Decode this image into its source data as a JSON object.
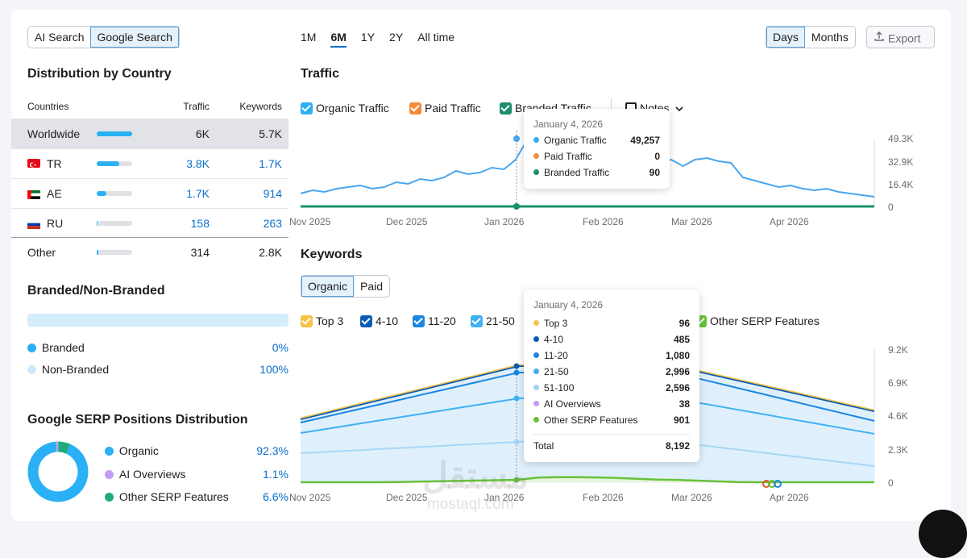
{
  "search_tabs": [
    "AI Search",
    "Google Search"
  ],
  "periods": [
    "1M",
    "6M",
    "1Y",
    "2Y",
    "All time"
  ],
  "granularity": [
    "Days",
    "Months"
  ],
  "export_label": "Export",
  "country": {
    "title": "Distribution by Country",
    "headers": [
      "Countries",
      "Traffic",
      "Keywords"
    ],
    "rows": [
      {
        "name": "Worldwide",
        "traffic": "6K",
        "keywords": "5.7K",
        "share": 100
      },
      {
        "name": "TR",
        "traffic": "3.8K",
        "keywords": "1.7K",
        "share": 63
      },
      {
        "name": "AE",
        "traffic": "1.7K",
        "keywords": "914",
        "share": 28
      },
      {
        "name": "RU",
        "traffic": "158",
        "keywords": "263",
        "share": 3
      },
      {
        "name": "Other",
        "traffic": "314",
        "keywords": "2.8K",
        "share": 5
      }
    ]
  },
  "branded": {
    "title": "Branded/Non-Branded",
    "items": [
      {
        "label": "Branded",
        "value": "0%",
        "color": "#2ab0f4"
      },
      {
        "label": "Non-Branded",
        "value": "100%",
        "color": "#cde9fb"
      }
    ]
  },
  "serp": {
    "title": "Google SERP Positions Distribution",
    "items": [
      {
        "label": "Organic",
        "value": "92.3%",
        "color": "#2ab0f4",
        "share": 92.3
      },
      {
        "label": "AI Overviews",
        "value": "1.1%",
        "color": "#c59cf4",
        "share": 1.1
      },
      {
        "label": "Other SERP Features",
        "value": "6.6%",
        "color": "#1fab7a",
        "share": 6.6
      }
    ]
  },
  "traffic": {
    "title": "Traffic",
    "legend": [
      {
        "label": "Organic Traffic",
        "color": "#2ab0f4"
      },
      {
        "label": "Paid Traffic",
        "color": "#f48b3b"
      },
      {
        "label": "Branded Traffic",
        "color": "#1a8f6c"
      }
    ],
    "notes_label": "Notes",
    "y_ticks": [
      "49.3K",
      "32.9K",
      "16.4K",
      "0"
    ],
    "x_ticks": [
      "Nov 2025",
      "Dec 2025",
      "Jan 2026",
      "Feb 2026",
      "Mar 2026",
      "Apr 2026"
    ],
    "tooltip": {
      "date": "January 4, 2026",
      "rows": [
        {
          "label": "Organic Traffic",
          "value": "49,257",
          "color": "#2ab0f4"
        },
        {
          "label": "Paid Traffic",
          "value": "0",
          "color": "#f48b3b"
        },
        {
          "label": "Branded Traffic",
          "value": "90",
          "color": "#1a8f6c"
        }
      ]
    }
  },
  "keywords": {
    "title": "Keywords",
    "tabs": [
      "Organic",
      "Paid"
    ],
    "legend": [
      {
        "label": "Top 3",
        "color": "#f6c343"
      },
      {
        "label": "4-10",
        "color": "#0a5bb5"
      },
      {
        "label": "11-20",
        "color": "#1c86e0"
      },
      {
        "label": "21-50",
        "color": "#3fb1f3"
      },
      {
        "label": "Other SERP Features",
        "color": "#67c23a"
      }
    ],
    "y_ticks": [
      "9.2K",
      "6.9K",
      "4.6K",
      "2.3K",
      "0"
    ],
    "x_ticks": [
      "Nov 2025",
      "Dec 2025",
      "Jan 2026",
      "Feb 2026",
      "Mar 2026",
      "Apr 2026"
    ],
    "tooltip": {
      "date": "January 4, 2026",
      "rows": [
        {
          "label": "Top 3",
          "value": "96",
          "color": "#f6c343"
        },
        {
          "label": "4-10",
          "value": "485",
          "color": "#0a5bb5"
        },
        {
          "label": "11-20",
          "value": "1,080",
          "color": "#1c86e0"
        },
        {
          "label": "21-50",
          "value": "2,996",
          "color": "#3fb1f3"
        },
        {
          "label": "51-100",
          "value": "2,596",
          "color": "#9fd3f7"
        },
        {
          "label": "AI Overviews",
          "value": "38",
          "color": "#c59cf4"
        },
        {
          "label": "Other SERP Features",
          "value": "901",
          "color": "#67c23a"
        }
      ],
      "total_label": "Total",
      "total_value": "8,192"
    }
  },
  "watermark": {
    "text": "mostaql.com",
    "arabic": "مستقل"
  }
}
